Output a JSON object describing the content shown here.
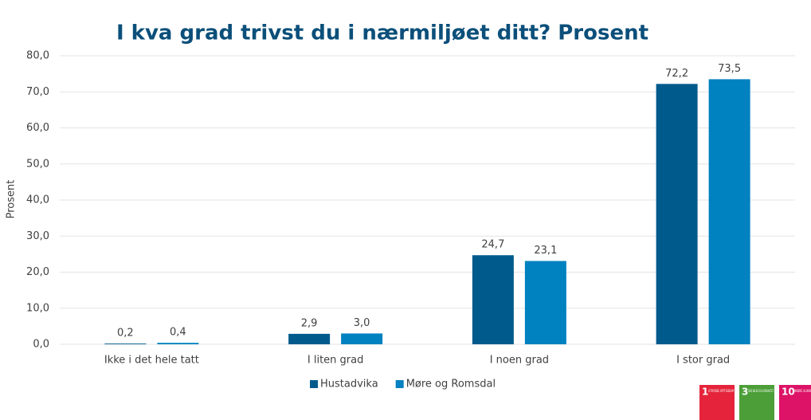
{
  "chart_data": {
    "type": "bar",
    "title": "I kva grad trivst du i nærmiljøet ditt? Prosent",
    "y_label": "Prosent",
    "categories": [
      "Ikke i det hele tatt",
      "I liten grad",
      "I noen grad",
      "I stor grad"
    ],
    "series": [
      {
        "name": "Hustadvika",
        "color": "#005a8c",
        "values": [
          0.2,
          2.9,
          24.7,
          72.2
        ],
        "value_labels": [
          "0,2",
          "2,9",
          "24,7",
          "72,2"
        ]
      },
      {
        "name": "Møre og Romsdal",
        "color": "#0081c0",
        "values": [
          0.4,
          3.0,
          23.1,
          73.5
        ],
        "value_labels": [
          "0,4",
          "3,0",
          "23,1",
          "73,5"
        ]
      }
    ],
    "ylim": [
      0,
      80
    ],
    "yticks": [
      {
        "value": 0,
        "label": "0,0"
      },
      {
        "value": 10,
        "label": "10,0"
      },
      {
        "value": 20,
        "label": "20,0"
      },
      {
        "value": 30,
        "label": "30,0"
      },
      {
        "value": 40,
        "label": "40,0"
      },
      {
        "value": 50,
        "label": "50,0"
      },
      {
        "value": 60,
        "label": "60,0"
      },
      {
        "value": 70,
        "label": "70,0"
      },
      {
        "value": 80,
        "label": "80,0"
      }
    ],
    "grid": true,
    "legend": "bottom"
  },
  "sdg_icons": [
    {
      "number": "1",
      "label": "UTRYDDE FATTIGDOM",
      "color": "#e5243b"
    },
    {
      "number": "3",
      "label": "GOD HELSE OG LIVSKVALITET",
      "color": "#4c9f38"
    },
    {
      "number": "10",
      "label": "MINDRE ULIKHET",
      "color": "#dd1367"
    }
  ]
}
